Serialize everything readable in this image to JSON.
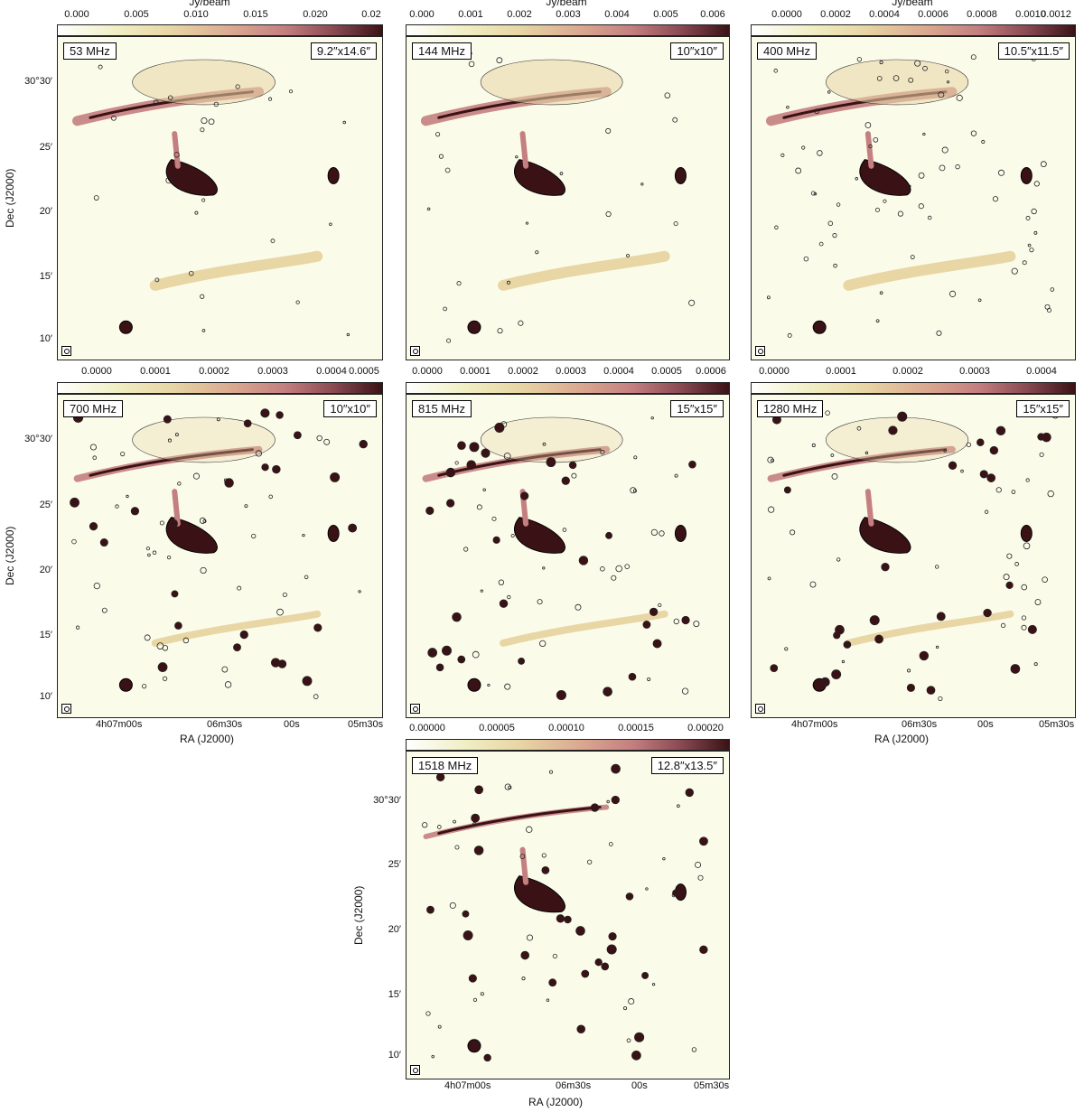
{
  "colorbar_unit": "Jy/beam",
  "y_ticks": [
    "30°30′",
    "25′",
    "20′",
    "15′",
    "10′"
  ],
  "x_ticks": [
    "4h07m00s",
    "06m30s",
    "00s",
    "05m30s"
  ],
  "y_axis_label": "Dec (J2000)",
  "x_axis_label": "RA (J2000)",
  "panels": [
    {
      "freq": "53 MHz",
      "beam": "9.2″x14.6″",
      "cb_ticks": [
        "0.000",
        "0.005",
        "0.010",
        "0.015",
        "0.020",
        "0.02"
      ]
    },
    {
      "freq": "144 MHz",
      "beam": "10″x10″",
      "cb_ticks": [
        "0.000",
        "0.001",
        "0.002",
        "0.003",
        "0.004",
        "0.005",
        "0.006"
      ]
    },
    {
      "freq": "400 MHz",
      "beam": "10.5″x11.5″",
      "cb_ticks": [
        "0.0000",
        "0.0002",
        "0.0004",
        "0.0006",
        "0.0008",
        "0.0010",
        "0.0012"
      ]
    },
    {
      "freq": "700 MHz",
      "beam": "10″x10″",
      "cb_ticks": [
        "0.0000",
        "0.0001",
        "0.0002",
        "0.0003",
        "0.0004",
        "0.0005"
      ]
    },
    {
      "freq": "815 MHz",
      "beam": "15″x15″",
      "cb_ticks": [
        "0.0000",
        "0.0001",
        "0.0002",
        "0.0003",
        "0.0004",
        "0.0005",
        "0.0006"
      ]
    },
    {
      "freq": "1280 MHz",
      "beam": "15″x15″",
      "cb_ticks": [
        "0.0000",
        "0.0001",
        "0.0002",
        "0.0003",
        "0.0004"
      ]
    },
    {
      "freq": "1518 MHz",
      "beam": "12.8″x13.5″",
      "cb_ticks": [
        "0.00000",
        "0.00005",
        "0.00010",
        "0.00015",
        "0.00020"
      ]
    }
  ],
  "colors": {
    "background": "#fbfbea",
    "emission_low": "#e8d6a4",
    "emission_mid": "#c47f80",
    "emission_high": "#3a1216"
  }
}
